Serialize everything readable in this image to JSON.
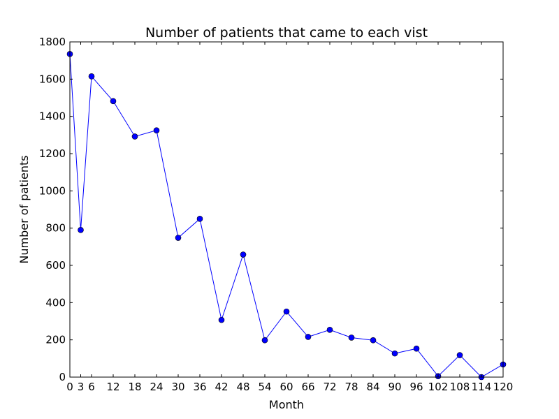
{
  "chart_data": {
    "type": "line",
    "title": "Number of patients that came to each vist",
    "xlabel": "Month",
    "ylabel": "Number of patients",
    "xlim": [
      0,
      120
    ],
    "ylim": [
      0,
      1800
    ],
    "grid": false,
    "x_ticks": [
      "0",
      "3",
      "6",
      "12",
      "18",
      "24",
      "30",
      "36",
      "42",
      "48",
      "54",
      "60",
      "66",
      "72",
      "78",
      "84",
      "90",
      "96",
      "102",
      "108",
      "114",
      "120"
    ],
    "y_ticks": [
      "0",
      "200",
      "400",
      "600",
      "800",
      "1000",
      "1200",
      "1400",
      "1600",
      "1800"
    ],
    "series": [
      {
        "color": "#0000ff",
        "x": [
          0,
          3,
          6,
          12,
          18,
          24,
          30,
          36,
          42,
          48,
          54,
          60,
          66,
          72,
          78,
          84,
          90,
          96,
          102,
          108,
          114,
          120
        ],
        "y": [
          1735,
          790,
          1615,
          1482,
          1292,
          1325,
          748,
          850,
          307,
          658,
          198,
          352,
          216,
          254,
          212,
          198,
          127,
          153,
          5,
          118,
          0,
          68
        ]
      }
    ]
  }
}
